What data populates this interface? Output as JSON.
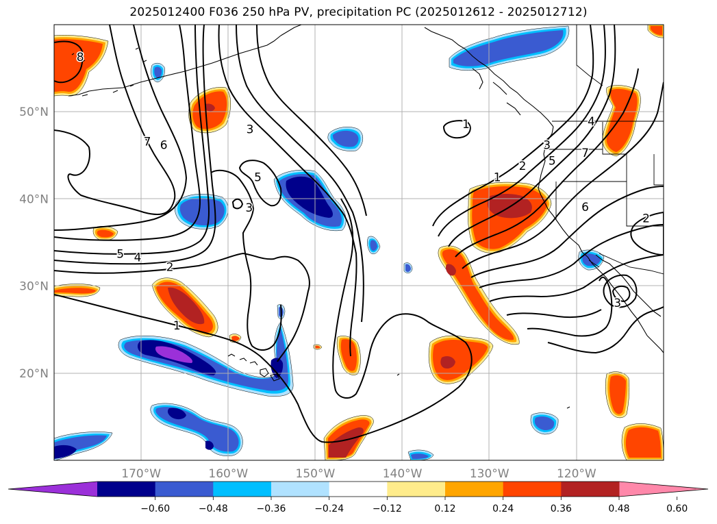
{
  "title": "2025012400 F036 250 hPa PV, precipitation PC (2025012612 - 2025012712)",
  "map": {
    "lon_range": [
      -180,
      -110
    ],
    "lat_range": [
      10,
      60
    ],
    "lat_ticks": [
      {
        "value": 20,
        "label": "20°N"
      },
      {
        "value": 30,
        "label": "30°N"
      },
      {
        "value": 40,
        "label": "40°N"
      },
      {
        "value": 50,
        "label": "50°N"
      }
    ],
    "lon_ticks": [
      {
        "value": -170,
        "label": "170°W"
      },
      {
        "value": -160,
        "label": "160°W"
      },
      {
        "value": -150,
        "label": "150°W"
      },
      {
        "value": -140,
        "label": "140°W"
      },
      {
        "value": -130,
        "label": "130°W"
      },
      {
        "value": -120,
        "label": "120°W"
      }
    ],
    "grid": true,
    "contour_labels": [
      {
        "text": "8",
        "lon": -177,
        "lat": 56.3
      },
      {
        "text": "7",
        "lon": -169.3,
        "lat": 46.6
      },
      {
        "text": "6",
        "lon": -167.4,
        "lat": 46.2
      },
      {
        "text": "3",
        "lon": -157.5,
        "lat": 48.0
      },
      {
        "text": "5",
        "lon": -156.6,
        "lat": 42.5
      },
      {
        "text": "3",
        "lon": -157.6,
        "lat": 39.0
      },
      {
        "text": "5",
        "lon": -172.4,
        "lat": 33.7
      },
      {
        "text": "4",
        "lon": -170.4,
        "lat": 33.3
      },
      {
        "text": "2",
        "lon": -166.7,
        "lat": 32.2
      },
      {
        "text": "1",
        "lon": -165.9,
        "lat": 25.5
      },
      {
        "text": "1",
        "lon": -132.7,
        "lat": 48.6
      },
      {
        "text": "1",
        "lon": -129.1,
        "lat": 42.5
      },
      {
        "text": "2",
        "lon": -126.2,
        "lat": 43.8
      },
      {
        "text": "3",
        "lon": -123.4,
        "lat": 46.2
      },
      {
        "text": "5",
        "lon": -122.8,
        "lat": 44.4
      },
      {
        "text": "4",
        "lon": -118.3,
        "lat": 48.9
      },
      {
        "text": "7",
        "lon": -119.0,
        "lat": 45.3
      },
      {
        "text": "6",
        "lon": -119.0,
        "lat": 39.1
      },
      {
        "text": "2",
        "lon": -112.0,
        "lat": 37.8
      },
      {
        "text": "3",
        "lon": -115.3,
        "lat": 28.1
      }
    ]
  },
  "colorbar": {
    "tick_labels": [
      "−0.60",
      "−0.48",
      "−0.36",
      "−0.24",
      "−0.12",
      "0.12",
      "0.24",
      "0.36",
      "0.48",
      "0.60"
    ],
    "colors": [
      "#9b30d9",
      "#00008b",
      "#3a5bd1",
      "#00bfff",
      "#b0e2ff",
      "#ffffff",
      "#ffec8b",
      "#ffa500",
      "#ff4500",
      "#b22222",
      "#ff88aa"
    ]
  },
  "colors": {
    "contour": "#000000",
    "coastline": "#000000",
    "grid": "#b0b0b0",
    "tick_label": "#808080"
  }
}
